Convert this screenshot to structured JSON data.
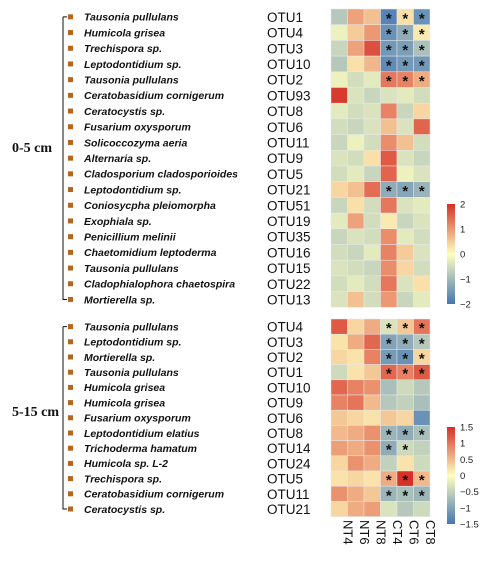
{
  "colors": {
    "low": "#4575b4",
    "mid": "#ffffbf",
    "high": "#d73027",
    "marker": "#b5651d"
  },
  "chart_data": [
    {
      "type": "heatmap",
      "depth_label": "0-5 cm",
      "columns": [
        "NT4",
        "NT6",
        "NT8",
        "CT4",
        "CT6",
        "CT8"
      ],
      "legend_ticks": [
        "2",
        "1",
        "0",
        "−1",
        "−2"
      ],
      "legend_range": [
        -2,
        2
      ],
      "rows": [
        {
          "species": "Tausonia pullulans",
          "otu": "OTU1",
          "values": [
            -0.8,
            0.9,
            0.6,
            -1.8,
            0.3,
            -1.6
          ],
          "sig": [
            false,
            false,
            false,
            true,
            true,
            true
          ]
        },
        {
          "species": "Humicola grisea",
          "otu": "OTU4",
          "values": [
            -0.2,
            0.5,
            1.0,
            -1.6,
            -1.2,
            0.2
          ],
          "sig": [
            false,
            false,
            false,
            true,
            true,
            true
          ]
        },
        {
          "species": "Trechispora sp.",
          "otu": "OTU3",
          "values": [
            -0.6,
            0.9,
            1.7,
            -1.5,
            -1.4,
            -0.9
          ],
          "sig": [
            false,
            false,
            false,
            true,
            true,
            true
          ]
        },
        {
          "species": "Leptodontidium sp.",
          "otu": "OTU10",
          "values": [
            -0.8,
            0.3,
            0.7,
            -1.7,
            -1.5,
            -1.5
          ],
          "sig": [
            false,
            false,
            false,
            true,
            true,
            true
          ]
        },
        {
          "species": "Tausonia pullulans",
          "otu": "OTU2",
          "values": [
            -0.2,
            -0.5,
            -0.3,
            1.3,
            1.2,
            0.8
          ],
          "sig": [
            false,
            false,
            false,
            true,
            true,
            true
          ]
        },
        {
          "species": "Ceratobasidium cornigerum",
          "otu": "OTU93",
          "values": [
            1.9,
            -0.4,
            -0.6,
            -0.4,
            -0.3,
            -0.5
          ],
          "sig": [
            false,
            false,
            false,
            false,
            false,
            false
          ]
        },
        {
          "species": "Ceratocystis sp.",
          "otu": "OTU8",
          "values": [
            -0.3,
            -0.5,
            -0.4,
            1.2,
            -0.6,
            0.4
          ],
          "sig": [
            false,
            false,
            false,
            false,
            false,
            false
          ]
        },
        {
          "species": "Fusarium oxysporum",
          "otu": "OTU6",
          "values": [
            -0.5,
            -0.6,
            -0.4,
            0.6,
            -0.4,
            1.5
          ],
          "sig": [
            false,
            false,
            false,
            false,
            false,
            false
          ]
        },
        {
          "species": "Solicoccozyma aeria",
          "otu": "OTU11",
          "values": [
            -0.6,
            -0.2,
            -0.5,
            1.1,
            0.6,
            -0.5
          ],
          "sig": [
            false,
            false,
            false,
            false,
            false,
            false
          ]
        },
        {
          "species": "Alternaria sp.",
          "otu": "OTU9",
          "values": [
            -0.4,
            -0.5,
            0.3,
            1.6,
            -0.4,
            -0.6
          ],
          "sig": [
            false,
            false,
            false,
            false,
            false,
            false
          ]
        },
        {
          "species": "Cladosporium cladosporioides",
          "otu": "OTU5",
          "values": [
            -0.5,
            -0.3,
            -0.6,
            1.5,
            -0.2,
            -0.4
          ],
          "sig": [
            false,
            false,
            false,
            false,
            false,
            false
          ]
        },
        {
          "species": "Leptodontidium sp.",
          "otu": "OTU21",
          "values": [
            0.4,
            0.6,
            1.4,
            -1.2,
            -1.3,
            -1.1
          ],
          "sig": [
            false,
            false,
            false,
            true,
            true,
            true
          ]
        },
        {
          "species": "Coniosycpha pleiomorpha",
          "otu": "OTU51",
          "values": [
            -0.6,
            0.3,
            -0.5,
            1.3,
            -0.4,
            -0.3
          ],
          "sig": [
            false,
            false,
            false,
            false,
            false,
            false
          ]
        },
        {
          "species": "Exophiala sp.",
          "otu": "OTU19",
          "values": [
            -0.3,
            0.9,
            -0.5,
            0.2,
            -0.6,
            -0.4
          ],
          "sig": [
            false,
            false,
            false,
            false,
            false,
            false
          ]
        },
        {
          "species": "Penicillium melinii",
          "otu": "OTU35",
          "values": [
            -0.6,
            -0.4,
            -0.5,
            1.1,
            -0.3,
            -0.5
          ],
          "sig": [
            false,
            false,
            false,
            false,
            false,
            false
          ]
        },
        {
          "species": "Chaetomidium leptoderma",
          "otu": "OTU16",
          "values": [
            -0.5,
            -0.6,
            -0.3,
            1.2,
            0.5,
            -0.4
          ],
          "sig": [
            false,
            false,
            false,
            false,
            false,
            false
          ]
        },
        {
          "species": "Tausonia pullulans",
          "otu": "OTU15",
          "values": [
            -0.4,
            -0.5,
            -0.6,
            1.1,
            0.4,
            -0.5
          ],
          "sig": [
            false,
            false,
            false,
            false,
            false,
            false
          ]
        },
        {
          "species": "Cladophialophora chaetospira",
          "otu": "OTU22",
          "values": [
            -0.5,
            -0.3,
            -0.5,
            1.3,
            -0.4,
            0.3
          ],
          "sig": [
            false,
            false,
            false,
            false,
            false,
            false
          ]
        },
        {
          "species": "Mortierella sp.",
          "otu": "OTU13",
          "values": [
            -0.4,
            0.6,
            -0.5,
            1.0,
            -0.6,
            -0.3
          ],
          "sig": [
            false,
            false,
            false,
            false,
            false,
            false
          ]
        }
      ]
    },
    {
      "type": "heatmap",
      "depth_label": "5-15 cm",
      "columns": [
        "NT4",
        "NT6",
        "NT8",
        "CT4",
        "CT6",
        "CT8"
      ],
      "legend_ticks": [
        "1.5",
        "1",
        "0.5",
        "0",
        "−0.5",
        "−1",
        "−1.5"
      ],
      "legend_range": [
        -1.5,
        1.5
      ],
      "rows": [
        {
          "species": "Tausonia pullulans",
          "otu": "OTU4",
          "values": [
            1.2,
            0.3,
            0.6,
            -0.3,
            0.4,
            1.0
          ],
          "sig": [
            false,
            false,
            false,
            true,
            true,
            true
          ]
        },
        {
          "species": "Leptodontidium sp.",
          "otu": "OTU3",
          "values": [
            0.2,
            0.6,
            1.1,
            -1.0,
            -0.9,
            -0.6
          ],
          "sig": [
            false,
            false,
            false,
            true,
            true,
            true
          ]
        },
        {
          "species": "Mortierella sp.",
          "otu": "OTU2",
          "values": [
            0.3,
            0.2,
            0.9,
            -1.1,
            -1.2,
            0.3
          ],
          "sig": [
            false,
            false,
            false,
            true,
            true,
            true
          ]
        },
        {
          "species": "Tausonia pullulans",
          "otu": "OTU1",
          "values": [
            -0.4,
            0.2,
            0.4,
            1.1,
            0.9,
            1.2
          ],
          "sig": [
            false,
            false,
            false,
            true,
            true,
            true
          ]
        },
        {
          "species": "Humicola grisea",
          "otu": "OTU10",
          "values": [
            1.1,
            0.9,
            0.8,
            -0.7,
            -0.4,
            -0.6
          ],
          "sig": [
            false,
            false,
            false,
            false,
            false,
            false
          ]
        },
        {
          "species": "Humicola grisea",
          "otu": "OTU9",
          "values": [
            0.9,
            1.0,
            0.5,
            -0.6,
            -0.5,
            -0.7
          ],
          "sig": [
            false,
            false,
            false,
            false,
            false,
            false
          ]
        },
        {
          "species": "Fusarium oxysporum",
          "otu": "OTU6",
          "values": [
            0.4,
            0.3,
            0.2,
            0.4,
            0.3,
            -1.2
          ],
          "sig": [
            false,
            false,
            false,
            false,
            false,
            false
          ]
        },
        {
          "species": "Leptodontidium elatius",
          "otu": "OTU8",
          "values": [
            0.5,
            0.6,
            0.8,
            -0.8,
            -0.9,
            -0.7
          ],
          "sig": [
            false,
            false,
            false,
            true,
            true,
            true
          ]
        },
        {
          "species": "Trichoderma hamatum",
          "otu": "OTU14",
          "values": [
            0.7,
            0.6,
            0.8,
            -0.9,
            -0.4,
            -0.5
          ],
          "sig": [
            false,
            false,
            false,
            true,
            true,
            false
          ]
        },
        {
          "species": "Humicola sp. L-2",
          "otu": "OTU24",
          "values": [
            0.3,
            0.8,
            0.6,
            -0.5,
            0.2,
            -0.4
          ],
          "sig": [
            false,
            false,
            false,
            false,
            false,
            false
          ]
        },
        {
          "species": "Trechispora sp.",
          "otu": "OTU5",
          "values": [
            0.2,
            0.3,
            0.2,
            0.6,
            1.5,
            0.5
          ],
          "sig": [
            false,
            false,
            false,
            true,
            true,
            true
          ]
        },
        {
          "species": "Ceratobasidium cornigerum",
          "otu": "OTU11",
          "values": [
            0.8,
            0.6,
            0.4,
            -0.8,
            -0.7,
            -0.8
          ],
          "sig": [
            false,
            false,
            false,
            true,
            true,
            true
          ]
        },
        {
          "species": "Ceratocystis sp.",
          "otu": "OTU21",
          "values": [
            0.3,
            0.6,
            0.7,
            -0.3,
            -0.6,
            -0.4
          ],
          "sig": [
            false,
            false,
            false,
            false,
            false,
            false
          ]
        }
      ]
    }
  ]
}
